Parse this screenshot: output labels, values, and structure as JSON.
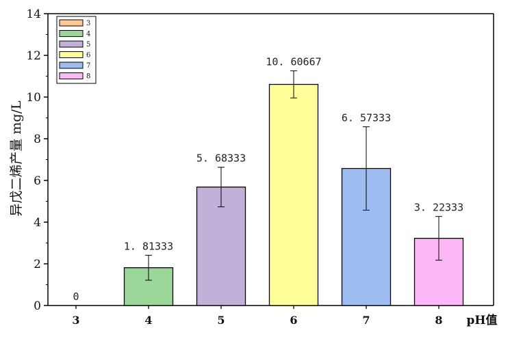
{
  "chart_data": {
    "type": "bar",
    "categories": [
      "3",
      "4",
      "5",
      "6",
      "7",
      "8"
    ],
    "values": [
      0,
      1.81333,
      5.68333,
      10.60667,
      6.57333,
      3.22333
    ],
    "data_labels": [
      "0",
      "1. 81333",
      "5. 68333",
      "10. 60667",
      "6. 57333",
      "3. 22333"
    ],
    "error": [
      0,
      0.6,
      0.95,
      0.65,
      2.0,
      1.05
    ],
    "colors": [
      "#FFC891",
      "#9CD79A",
      "#C1B1D8",
      "#FFFF99",
      "#9CBCF2",
      "#FDB7F7"
    ],
    "legend": [
      "3",
      "4",
      "5",
      "6",
      "7",
      "8"
    ],
    "legend_position": "top-left",
    "ylabel": "异戊二烯产量 mg/L",
    "xlabel": "pH值",
    "ylim": [
      0,
      14
    ],
    "yticks": [
      "0",
      "2",
      "4",
      "6",
      "8",
      "10",
      "12",
      "14"
    ],
    "grid": false
  }
}
